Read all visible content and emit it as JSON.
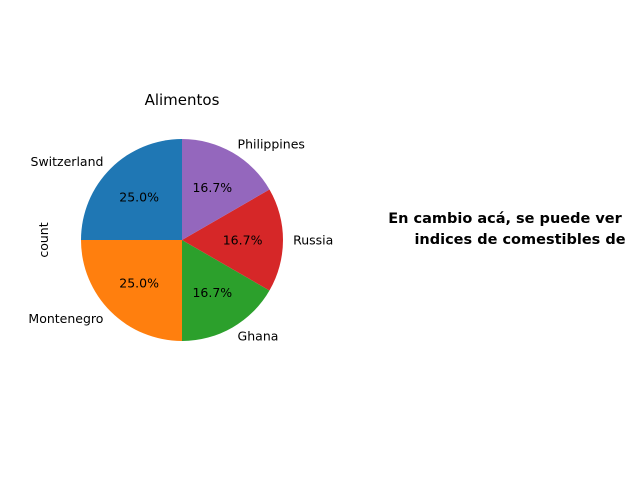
{
  "chart_data": {
    "type": "pie",
    "title": "Alimentos",
    "ylabel": "count",
    "categories": [
      "Switzerland",
      "Montenegro",
      "Ghana",
      "Russia",
      "Philippines"
    ],
    "values": [
      3,
      3,
      2,
      2,
      2
    ],
    "percent_labels": [
      "25.0%",
      "25.0%",
      "16.7%",
      "16.7%",
      "16.7%"
    ],
    "colors": [
      "#1f77b4",
      "#ff7f0e",
      "#2ca02c",
      "#d62728",
      "#9467bd"
    ],
    "start_angle_deg": 90,
    "direction": "counterclockwise"
  },
  "annotation": {
    "lines": [
      "En cambio acá, se puede ver",
      "indices de comestibles de"
    ]
  }
}
